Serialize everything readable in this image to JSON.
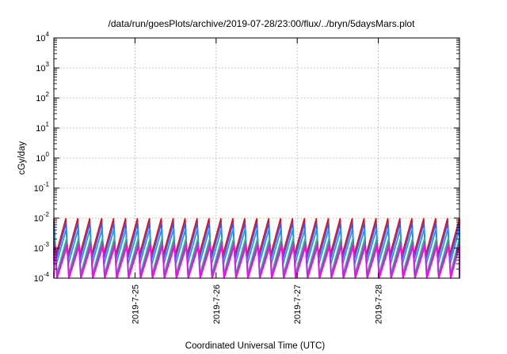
{
  "chart_data": {
    "type": "line",
    "title": "/data/run/goesPlots/archive/2019-07-28/23:00/flux/../bryn/5daysMars.plot",
    "xlabel": "Coordinated Universal Time (UTC)",
    "ylabel": "cGy/day",
    "yscale": "log",
    "ylim": [
      0.0001,
      10000
    ],
    "xlim": [
      "2019-07-24 00:00",
      "2019-07-29 00:00"
    ],
    "x_ticks": [
      "2019-7-25",
      "2019-7-26",
      "2019-7-27",
      "2019-7-28"
    ],
    "y_ticks": [
      {
        "base": "10",
        "exp": "-4",
        "value": 0.0001
      },
      {
        "base": "10",
        "exp": "-3",
        "value": 0.001
      },
      {
        "base": "10",
        "exp": "-2",
        "value": 0.01
      },
      {
        "base": "10",
        "exp": "-1",
        "value": 0.1
      },
      {
        "base": "10",
        "exp": "0",
        "value": 1
      },
      {
        "base": "10",
        "exp": "1",
        "value": 10
      },
      {
        "base": "10",
        "exp": "2",
        "value": 100
      },
      {
        "base": "10",
        "exp": "3",
        "value": 1000
      },
      {
        "base": "10",
        "exp": "4",
        "value": 10000
      }
    ],
    "grid": true,
    "legend": "none",
    "series": [
      {
        "color": "#ff0000",
        "min": 0.00055,
        "max": 0.0095,
        "phase": 0.0
      },
      {
        "color": "#3355ff",
        "min": 0.0004,
        "max": 0.007,
        "phase": 0.02
      },
      {
        "color": "#1e90ff",
        "min": 0.00028,
        "max": 0.0045,
        "phase": 0.05
      },
      {
        "color": "#20b2aa",
        "min": 0.00013,
        "max": 0.0022,
        "phase": 0.08
      },
      {
        "color": "#8b5a8b",
        "min": 0.00011,
        "max": 0.0016,
        "phase": 0.1
      },
      {
        "color": "#ff00ff",
        "min": 9e-05,
        "max": 0.0012,
        "phase": 0.12
      }
    ]
  }
}
